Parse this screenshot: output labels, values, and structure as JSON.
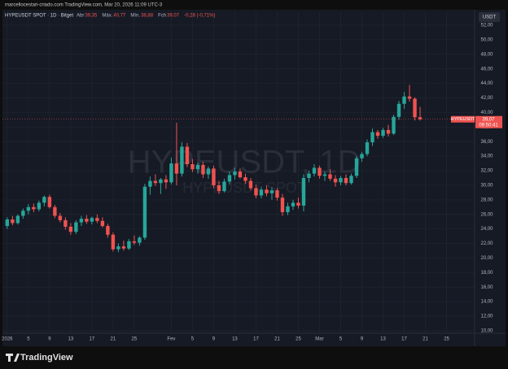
{
  "header": {
    "attribution": "marcellocestari-criado.com TradingView.com, Mar 20, 2026 11:09 UTC-3"
  },
  "chart_data": {
    "type": "candlestick",
    "symbol": "HYPEUSDT SPOT · 1D · Bitget",
    "ohlc_legend": [
      {
        "label": "Abr",
        "value": "39,35"
      },
      {
        "label": "Máx.",
        "value": "40,77"
      },
      {
        "label": "Mín.",
        "value": "38,88"
      },
      {
        "label": "Fch",
        "value": "39,07"
      }
    ],
    "change": "-0,28 (-0,71%)",
    "watermark": "HYPEUSDT, 1D",
    "watermark_sub": "HYPEUSDT SPOT",
    "currency": "USDT",
    "last_price": {
      "symbol": "HYPEUSDT",
      "value": 39.07,
      "label": "39,07",
      "countdown": "09:50:41"
    },
    "up_color": "#26a69a",
    "down_color": "#ef5350",
    "x": [
      0,
      1,
      2,
      3,
      4,
      5,
      6,
      7,
      8,
      9,
      10,
      11,
      12,
      13,
      14,
      15,
      16,
      17,
      18,
      19,
      20,
      21,
      22,
      23,
      24,
      25,
      26,
      27,
      28,
      29,
      30,
      31,
      32,
      33,
      34,
      35,
      36,
      37,
      38,
      39,
      40,
      41,
      42,
      43,
      44,
      45,
      46,
      47,
      48,
      49,
      50,
      51,
      52,
      53,
      54,
      55,
      56,
      57,
      58,
      59,
      60,
      61,
      62,
      63,
      64,
      65,
      66,
      67,
      68,
      69,
      70,
      71,
      72,
      73,
      74,
      75,
      76,
      77,
      78
    ],
    "ohlc": [
      [
        24.4,
        25.6,
        24.0,
        25.3
      ],
      [
        25.3,
        25.8,
        24.5,
        24.8
      ],
      [
        24.8,
        26.0,
        24.6,
        25.8
      ],
      [
        25.8,
        26.8,
        25.4,
        26.5
      ],
      [
        26.5,
        27.4,
        26.0,
        27.0
      ],
      [
        27.0,
        27.5,
        26.3,
        26.7
      ],
      [
        26.7,
        27.9,
        26.4,
        27.6
      ],
      [
        27.6,
        28.6,
        27.1,
        28.4
      ],
      [
        28.4,
        28.7,
        26.8,
        27.0
      ],
      [
        27.0,
        27.3,
        25.5,
        25.8
      ],
      [
        25.8,
        26.2,
        24.9,
        25.2
      ],
      [
        25.2,
        25.6,
        23.9,
        24.3
      ],
      [
        24.3,
        24.8,
        23.2,
        23.6
      ],
      [
        23.6,
        25.2,
        23.3,
        24.9
      ],
      [
        24.9,
        25.8,
        24.4,
        25.4
      ],
      [
        25.4,
        25.9,
        24.7,
        25.0
      ],
      [
        25.0,
        25.7,
        24.6,
        25.5
      ],
      [
        25.5,
        26.0,
        24.8,
        25.1
      ],
      [
        25.1,
        25.6,
        24.2,
        24.4
      ],
      [
        24.4,
        24.7,
        22.8,
        23.2
      ],
      [
        23.2,
        23.5,
        20.9,
        21.2
      ],
      [
        21.2,
        22.0,
        20.8,
        21.6
      ],
      [
        21.6,
        22.4,
        21.0,
        21.3
      ],
      [
        21.3,
        22.6,
        21.1,
        22.3
      ],
      [
        22.3,
        23.1,
        21.8,
        22.1
      ],
      [
        22.1,
        23.0,
        21.7,
        22.8
      ],
      [
        22.8,
        30.2,
        22.5,
        29.8
      ],
      [
        29.8,
        31.2,
        28.7,
        30.6
      ],
      [
        30.6,
        31.5,
        29.9,
        30.3
      ],
      [
        30.3,
        31.0,
        28.8,
        30.8
      ],
      [
        30.8,
        31.4,
        29.5,
        30.4
      ],
      [
        30.4,
        33.8,
        30.1,
        33.0
      ],
      [
        33.0,
        38.6,
        30.0,
        31.6
      ],
      [
        31.6,
        35.9,
        31.2,
        35.3
      ],
      [
        35.3,
        35.8,
        32.5,
        32.9
      ],
      [
        32.9,
        33.6,
        31.8,
        32.2
      ],
      [
        32.2,
        33.1,
        31.6,
        32.8
      ],
      [
        32.8,
        33.2,
        31.0,
        31.5
      ],
      [
        31.5,
        32.6,
        30.9,
        32.3
      ],
      [
        32.3,
        32.7,
        29.6,
        30.0
      ],
      [
        30.0,
        30.6,
        28.8,
        29.2
      ],
      [
        29.2,
        30.9,
        29.0,
        30.5
      ],
      [
        30.5,
        31.9,
        30.1,
        31.4
      ],
      [
        31.4,
        32.4,
        30.8,
        31.9
      ],
      [
        31.9,
        32.3,
        30.9,
        31.1
      ],
      [
        31.1,
        31.6,
        30.2,
        30.6
      ],
      [
        30.6,
        31.0,
        29.3,
        29.6
      ],
      [
        29.6,
        30.1,
        28.2,
        28.6
      ],
      [
        28.6,
        29.8,
        28.2,
        29.4
      ],
      [
        29.4,
        30.0,
        28.5,
        28.9
      ],
      [
        28.9,
        29.7,
        28.0,
        29.3
      ],
      [
        29.3,
        29.6,
        27.9,
        28.3
      ],
      [
        28.3,
        28.8,
        25.8,
        26.3
      ],
      [
        26.3,
        27.6,
        25.9,
        27.1
      ],
      [
        27.1,
        28.0,
        26.6,
        27.6
      ],
      [
        27.6,
        28.3,
        26.8,
        27.2
      ],
      [
        27.2,
        31.5,
        26.4,
        31.0
      ],
      [
        31.0,
        32.0,
        30.4,
        31.6
      ],
      [
        31.6,
        32.9,
        31.2,
        32.4
      ],
      [
        32.4,
        32.7,
        30.9,
        31.3
      ],
      [
        31.3,
        31.9,
        30.6,
        31.5
      ],
      [
        31.5,
        32.2,
        30.6,
        30.9
      ],
      [
        30.9,
        31.4,
        29.8,
        30.4
      ],
      [
        30.4,
        31.3,
        30.0,
        31.0
      ],
      [
        31.0,
        31.5,
        30.0,
        30.3
      ],
      [
        30.3,
        31.6,
        30.1,
        31.3
      ],
      [
        31.3,
        34.0,
        31.0,
        33.7
      ],
      [
        33.7,
        34.6,
        33.2,
        34.3
      ],
      [
        34.3,
        36.3,
        34.0,
        35.9
      ],
      [
        35.9,
        37.8,
        35.4,
        37.3
      ],
      [
        37.3,
        37.6,
        36.4,
        36.8
      ],
      [
        36.8,
        37.9,
        36.5,
        37.6
      ],
      [
        37.6,
        38.3,
        36.7,
        37.1
      ],
      [
        37.1,
        39.7,
        36.9,
        39.4
      ],
      [
        39.4,
        41.6,
        39.0,
        41.2
      ],
      [
        41.2,
        42.8,
        40.5,
        42.2
      ],
      [
        42.2,
        43.8,
        41.5,
        41.9
      ],
      [
        41.9,
        42.1,
        38.9,
        39.35
      ],
      [
        39.35,
        40.77,
        38.88,
        39.07
      ]
    ],
    "xlim": [
      -0.9,
      88.3
    ],
    "xticks": [
      {
        "value": 0,
        "label": "2026"
      },
      {
        "value": 4,
        "label": "5"
      },
      {
        "value": 8,
        "label": "9"
      },
      {
        "value": 12,
        "label": "13"
      },
      {
        "value": 16,
        "label": "17"
      },
      {
        "value": 20,
        "label": "21"
      },
      {
        "value": 24,
        "label": "25"
      },
      {
        "value": 31,
        "label": "Fev"
      },
      {
        "value": 35,
        "label": "5"
      },
      {
        "value": 39,
        "label": "9"
      },
      {
        "value": 43,
        "label": "13"
      },
      {
        "value": 47,
        "label": "17"
      },
      {
        "value": 51,
        "label": "21"
      },
      {
        "value": 55,
        "label": "25"
      },
      {
        "value": 59,
        "label": "Mar"
      },
      {
        "value": 63,
        "label": "5"
      },
      {
        "value": 67,
        "label": "9"
      },
      {
        "value": 71,
        "label": "13"
      },
      {
        "value": 75,
        "label": "17"
      },
      {
        "value": 79,
        "label": "21"
      },
      {
        "value": 83,
        "label": "25"
      }
    ],
    "ylim": [
      9.66,
      53.9
    ],
    "yticks": [
      {
        "value": 52,
        "label": "52,00"
      },
      {
        "value": 50,
        "label": "50,00"
      },
      {
        "value": 48,
        "label": "48,00"
      },
      {
        "value": 46,
        "label": "46,00"
      },
      {
        "value": 44,
        "label": "44,00"
      },
      {
        "value": 42,
        "label": "42,00"
      },
      {
        "value": 40,
        "label": "40,00"
      },
      {
        "value": 38,
        "label": "38,00"
      },
      {
        "value": 36,
        "label": "36,00"
      },
      {
        "value": 34,
        "label": "34,00"
      },
      {
        "value": 32,
        "label": "32,00"
      },
      {
        "value": 30,
        "label": "30,00"
      },
      {
        "value": 28,
        "label": "28,00"
      },
      {
        "value": 26,
        "label": "26,00"
      },
      {
        "value": 24,
        "label": "24,00"
      },
      {
        "value": 22,
        "label": "22,00"
      },
      {
        "value": 20,
        "label": "20,00"
      },
      {
        "value": 18,
        "label": "18,00"
      },
      {
        "value": 16,
        "label": "16,00"
      },
      {
        "value": 14,
        "label": "14,00"
      },
      {
        "value": 12,
        "label": "12,00"
      },
      {
        "value": 10,
        "label": "10,00"
      }
    ],
    "grid": true
  },
  "footer": {
    "brand": "TradingView"
  }
}
